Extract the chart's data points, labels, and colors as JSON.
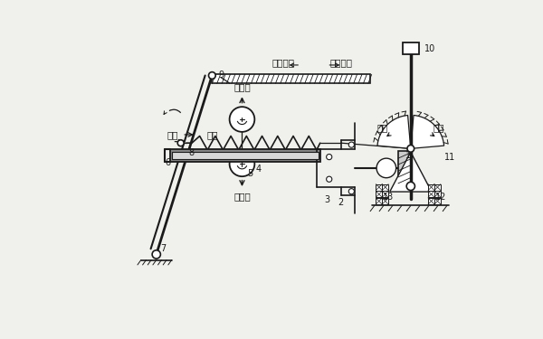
{
  "bg_color": "#f0f0ec",
  "line_color": "#1a1a1a",
  "labels": {
    "reduce_oil_top": "減少供油",
    "increase_oil_top": "增加供油",
    "pull": "拉力",
    "push": "推力",
    "centrifugal": "離心力",
    "reduce_oil": "減油",
    "increase_oil": "加油"
  },
  "spring_coils": 8,
  "spring_amplitude": 10
}
